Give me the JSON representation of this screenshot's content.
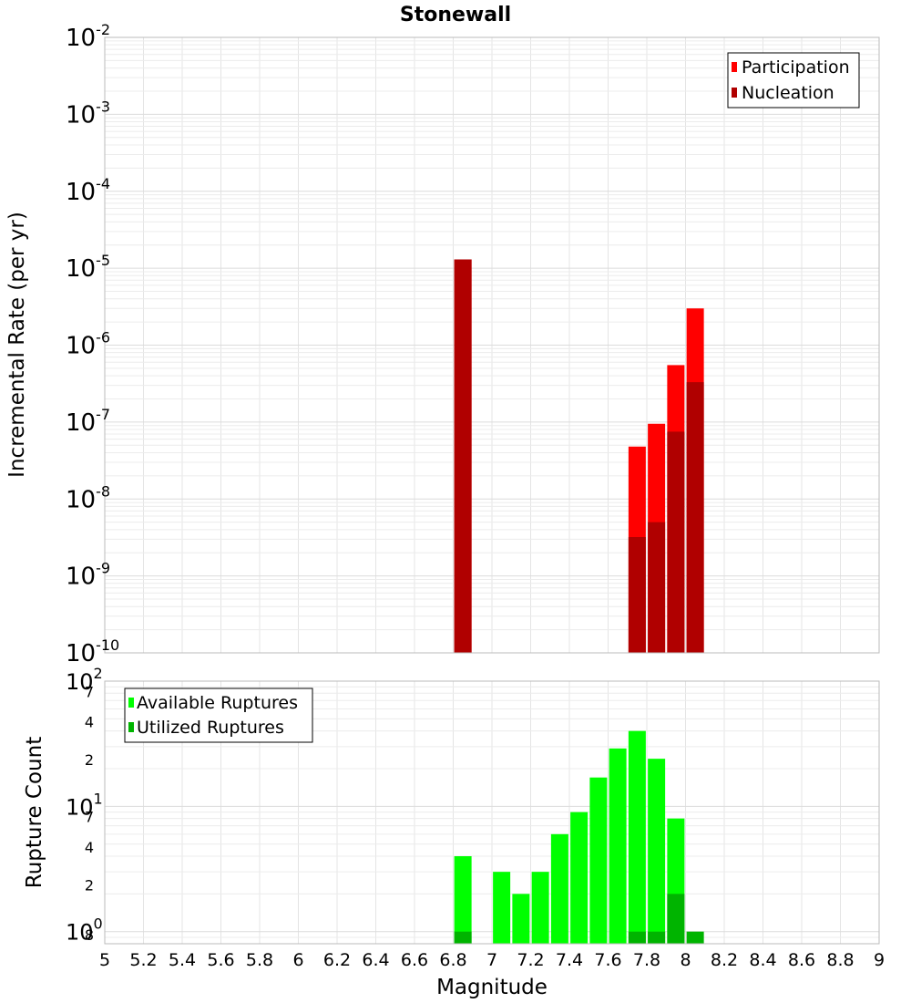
{
  "chart_data": {
    "title": "Stonewall",
    "xlabel": "Magnitude",
    "xlim": [
      5,
      9
    ],
    "x_ticks": [
      "5",
      "5.2",
      "5.4",
      "5.6",
      "5.8",
      "6",
      "6.2",
      "6.4",
      "6.6",
      "6.8",
      "7",
      "7.2",
      "7.4",
      "7.6",
      "7.8",
      "8",
      "8.2",
      "8.4",
      "8.6",
      "8.8",
      "9"
    ],
    "panels": [
      {
        "type": "bar",
        "ylabel": "Incremental Rate (per yr)",
        "yscale": "log",
        "ylim": [
          1e-10,
          0.01
        ],
        "y_ticks": [
          {
            "base": "10",
            "exp": "-2"
          },
          {
            "base": "10",
            "exp": "-3"
          },
          {
            "base": "10",
            "exp": "-4"
          },
          {
            "base": "10",
            "exp": "-5"
          },
          {
            "base": "10",
            "exp": "-6"
          },
          {
            "base": "10",
            "exp": "-7"
          },
          {
            "base": "10",
            "exp": "-8"
          },
          {
            "base": "10",
            "exp": "-9"
          },
          {
            "base": "10",
            "exp": "-10"
          }
        ],
        "grid": true,
        "legend_position": "top-right",
        "series": [
          {
            "name": "Participation",
            "color": "#ff0000",
            "x": [
              6.85,
              7.75,
              7.85,
              7.95,
              8.05
            ],
            "values": [
              1.3e-05,
              4.8e-08,
              9.5e-08,
              5.5e-07,
              3e-06
            ]
          },
          {
            "name": "Nucleation",
            "color": "#b00000",
            "x": [
              6.85,
              7.75,
              7.85,
              7.95,
              8.05
            ],
            "values": [
              1.3e-05,
              3.2e-09,
              5e-09,
              7.5e-08,
              3.3e-07
            ]
          }
        ]
      },
      {
        "type": "bar",
        "ylabel": "Rupture Count",
        "yscale": "log",
        "ylim": [
          0.8,
          100
        ],
        "y_ticks": [
          {
            "base": "10",
            "exp": "2"
          },
          {
            "base": "7",
            "exp": ""
          },
          {
            "base": "4",
            "exp": ""
          },
          {
            "base": "2",
            "exp": ""
          },
          {
            "base": "10",
            "exp": "1"
          },
          {
            "base": "7",
            "exp": ""
          },
          {
            "base": "4",
            "exp": ""
          },
          {
            "base": "2",
            "exp": ""
          },
          {
            "base": "10",
            "exp": "0"
          },
          {
            "base": "8",
            "exp": ""
          }
        ],
        "grid": true,
        "legend_position": "top-left",
        "series": [
          {
            "name": "Available Ruptures",
            "color": "#00ff00",
            "x": [
              6.85,
              7.05,
              7.15,
              7.25,
              7.35,
              7.45,
              7.55,
              7.65,
              7.75,
              7.85,
              7.95
            ],
            "values": [
              4,
              3,
              2,
              3,
              6,
              9,
              17,
              29,
              40,
              24,
              8
            ]
          },
          {
            "name": "Utilized Ruptures",
            "color": "#00b400",
            "x": [
              6.85,
              7.75,
              7.85,
              7.95,
              8.05
            ],
            "values": [
              1,
              1,
              1,
              2,
              1
            ]
          }
        ]
      }
    ]
  }
}
